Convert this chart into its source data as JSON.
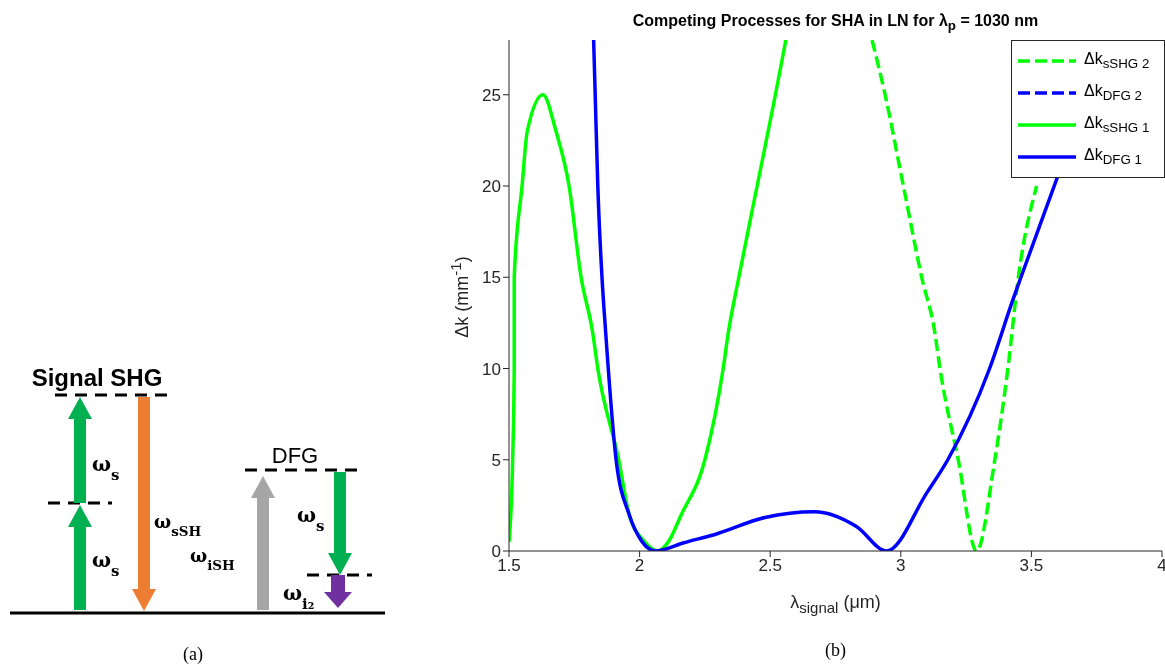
{
  "chart_data": [
    {
      "type": "other",
      "annotations": [
        "Signal SHG",
        "DFG",
        "ω$_{s}$",
        "ω$_{s}$",
        "ω$_{sSH}$",
        "ω$_{iSH}$",
        "ω$_{s}$",
        "ω$_{i₂}$",
        "(a)"
      ]
    },
    {
      "type": "line",
      "title": "Competing Processes for SHA in LN for λ$_{p}$ = 1030 nm",
      "xlabel": "λ$_{signal}$ (μm)",
      "ylabel": "Δk (mm$^{-1}$)",
      "xlim": [
        1.5,
        4
      ],
      "ylim": [
        0,
        28
      ],
      "xticks": [
        1.5,
        2,
        2.5,
        3,
        3.5,
        4
      ],
      "yticks": [
        0,
        5,
        10,
        15,
        20,
        25
      ],
      "legend": "top right",
      "annotations": [
        "(b)"
      ],
      "series": [
        {
          "name": "Δk$_{sSHG 2}$",
          "color": "#00ff00",
          "line_style": "dashed",
          "x": [
            2.89,
            2.94,
            3.01,
            3.08,
            3.13,
            3.15,
            3.22,
            3.29,
            3.36,
            3.41,
            3.45,
            3.52
          ],
          "values": [
            28,
            25,
            20,
            15,
            12,
            10,
            5,
            0,
            5,
            10,
            15,
            20
          ]
        },
        {
          "name": "Δk$_{DFG 2}$",
          "color": "#0000ff",
          "line_style": "dashed"
        },
        {
          "name": "Δk$_{sSHG 1}$",
          "color": "#00ff00",
          "line_style": "solid",
          "x": [
            1.5,
            1.514,
            1.52,
            1.52,
            1.55,
            1.57,
            1.63,
            1.68,
            1.73,
            1.776,
            1.82,
            1.84,
            1.92,
            1.96,
            2.02,
            2.07,
            2.11,
            2.16,
            2.25,
            2.32,
            2.34,
            2.38,
            2.45,
            2.52,
            2.56
          ],
          "values": [
            0.5,
            5,
            10,
            15,
            20,
            23,
            25,
            23,
            20,
            15,
            12,
            10,
            5,
            2,
            0.5,
            0,
            0.5,
            2,
            5,
            10,
            12,
            15,
            20,
            25,
            28
          ]
        },
        {
          "name": "Δk$_{DFG 1}$",
          "color": "#0000ff",
          "line_style": "solid",
          "x": [
            1.824,
            1.83,
            1.84,
            1.856,
            1.87,
            1.88,
            1.91,
            1.96,
            2.01,
            2.06,
            2.17,
            2.3,
            2.48,
            2.67,
            2.83,
            2.946,
            3.1,
            3.18,
            3.34,
            3.43,
            3.46,
            3.6
          ],
          "values": [
            28,
            25,
            20,
            15,
            12,
            10,
            5,
            2,
            0.5,
            0,
            0.45,
            0.96,
            1.84,
            2.15,
            1.34,
            0,
            3.2,
            5,
            10,
            13.8,
            15,
            20.5
          ]
        }
      ]
    }
  ]
}
